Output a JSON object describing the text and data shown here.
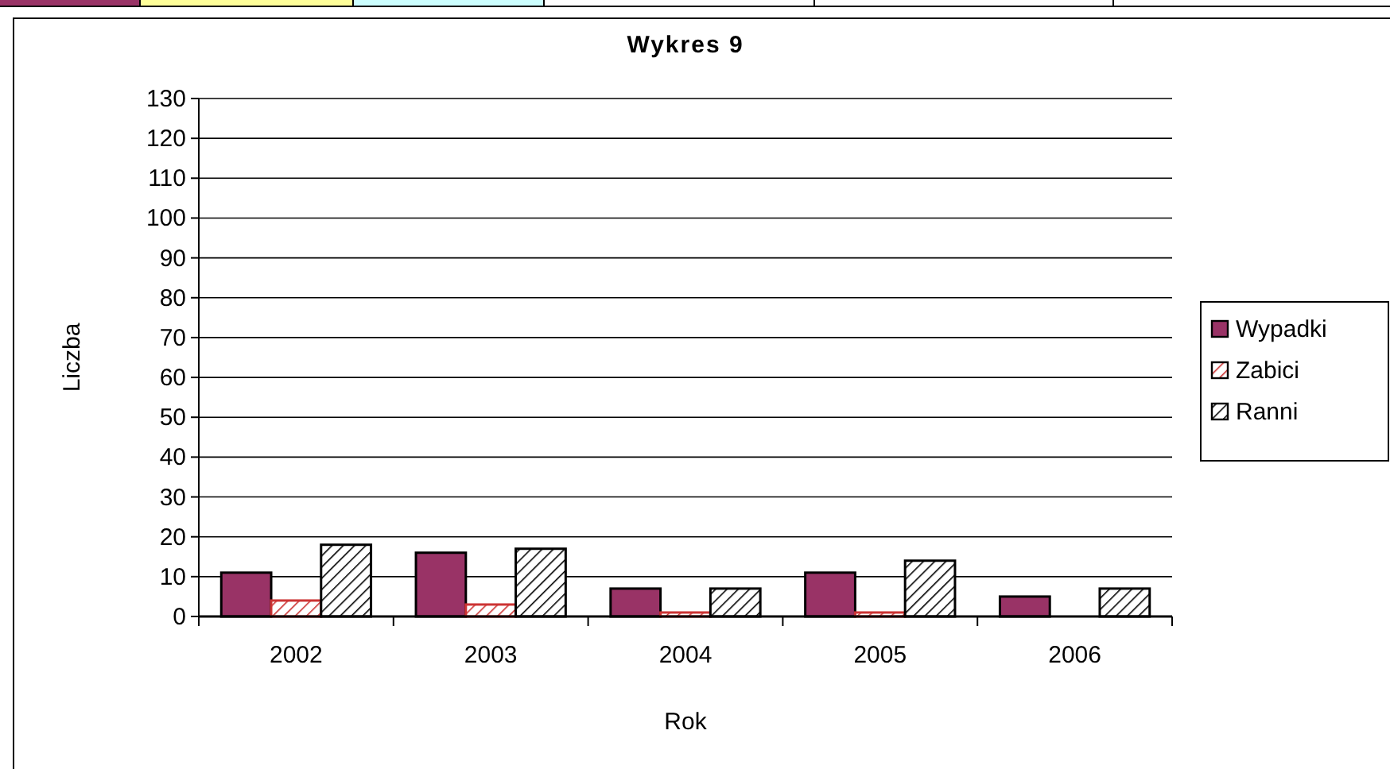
{
  "chart_data": {
    "type": "bar",
    "title": "Wykres 9",
    "xlabel": "Rok",
    "ylabel": "Liczba",
    "categories": [
      "2002",
      "2003",
      "2004",
      "2005",
      "2006"
    ],
    "series": [
      {
        "name": "Wypadki",
        "color": "#993366",
        "values": [
          11,
          16,
          7,
          11,
          5
        ]
      },
      {
        "name": "Zabici",
        "color": "#cc3333",
        "values": [
          4,
          3,
          1,
          1,
          0
        ]
      },
      {
        "name": "Ranni",
        "color": "#000000",
        "values": [
          18,
          17,
          7,
          14,
          7
        ]
      }
    ],
    "ylim": [
      0,
      130
    ],
    "yticks": [
      0,
      10,
      20,
      30,
      40,
      50,
      60,
      70,
      80,
      90,
      100,
      110,
      120,
      130
    ],
    "grid": "y",
    "legend": "right"
  }
}
